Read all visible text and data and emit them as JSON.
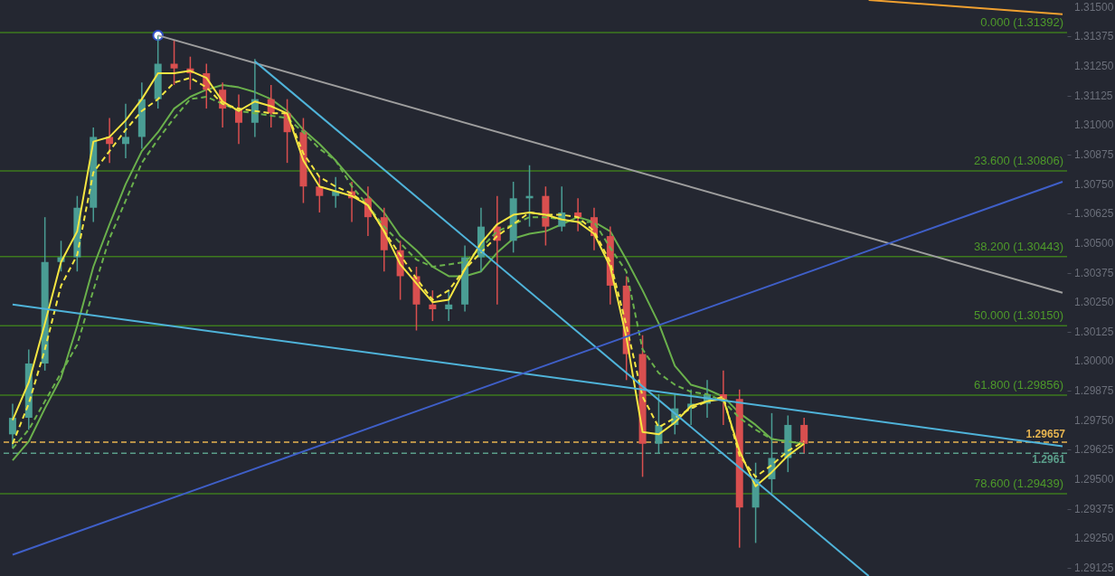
{
  "chart_data": {
    "type": "candlestick",
    "categories": [
      null,
      null,
      null,
      null,
      null,
      null,
      null,
      null,
      null,
      null,
      null,
      null,
      null,
      null,
      null,
      null,
      null,
      null,
      null,
      null,
      null,
      null,
      null,
      null,
      null,
      null,
      null,
      null,
      null,
      null,
      null,
      null,
      null,
      null,
      null,
      null,
      null,
      null,
      null,
      null,
      null,
      null,
      null,
      null,
      null,
      null,
      null,
      null,
      null,
      null,
      null,
      null,
      null,
      null,
      null,
      null,
      null,
      null,
      null,
      null,
      null,
      null,
      null,
      null,
      null,
      null
    ],
    "ohlc": [
      [
        1.2969,
        1.2982,
        1.2963,
        1.2976
      ],
      [
        1.2976,
        1.3005,
        1.2971,
        1.2999
      ],
      [
        1.2999,
        1.3061,
        1.2996,
        1.3042
      ],
      [
        1.3042,
        1.3051,
        1.3038,
        1.3044
      ],
      [
        1.3044,
        1.307,
        1.3038,
        1.3065
      ],
      [
        1.3065,
        1.3099,
        1.3059,
        1.3095
      ],
      [
        1.3095,
        1.3103,
        1.3084,
        1.3092
      ],
      [
        1.3092,
        1.3109,
        1.3086,
        1.3095
      ],
      [
        1.3095,
        1.3118,
        1.309,
        1.3111
      ],
      [
        1.3111,
        1.3138,
        1.3107,
        1.3126
      ],
      [
        1.3126,
        1.3136,
        1.3117,
        1.3124
      ],
      [
        1.3124,
        1.3129,
        1.3115,
        1.3122
      ],
      [
        1.3122,
        1.3126,
        1.3107,
        1.3115
      ],
      [
        1.3115,
        1.3118,
        1.3099,
        1.3107
      ],
      [
        1.3107,
        1.3113,
        1.3092,
        1.3101
      ],
      [
        1.3101,
        1.3128,
        1.3095,
        1.3111
      ],
      [
        1.3111,
        1.3117,
        1.3099,
        1.3105
      ],
      [
        1.3105,
        1.3111,
        1.3084,
        1.3097
      ],
      [
        1.3097,
        1.3103,
        1.3067,
        1.3074
      ],
      [
        1.3074,
        1.3078,
        1.3063,
        1.307
      ],
      [
        1.307,
        1.3078,
        1.3065,
        1.3072
      ],
      [
        1.3072,
        1.3076,
        1.3059,
        1.3069
      ],
      [
        1.3069,
        1.3074,
        1.3053,
        1.3061
      ],
      [
        1.3061,
        1.3065,
        1.3038,
        1.3047
      ],
      [
        1.3047,
        1.3051,
        1.3026,
        1.3036
      ],
      [
        1.3036,
        1.304,
        1.3013,
        1.3024
      ],
      [
        1.3024,
        1.303,
        1.3017,
        1.3022
      ],
      [
        1.3022,
        1.303,
        1.3017,
        1.3024
      ],
      [
        1.3024,
        1.3049,
        1.3021,
        1.3044
      ],
      [
        1.3044,
        1.3065,
        1.3038,
        1.3057
      ],
      [
        1.3057,
        1.307,
        1.3024,
        1.3051
      ],
      [
        1.3051,
        1.3076,
        1.3046,
        1.3069
      ],
      [
        1.3069,
        1.3083,
        1.3057,
        1.307
      ],
      [
        1.307,
        1.3074,
        1.3049,
        1.3057
      ],
      [
        1.3057,
        1.3074,
        1.3055,
        1.3063
      ],
      [
        1.3063,
        1.3069,
        1.3055,
        1.3061
      ],
      [
        1.3061,
        1.3065,
        1.3047,
        1.3053
      ],
      [
        1.3053,
        1.3057,
        1.3024,
        1.3032
      ],
      [
        1.3032,
        1.3036,
        1.2992,
        1.3003
      ],
      [
        1.3003,
        1.3011,
        1.2951,
        1.2965
      ],
      [
        1.2965,
        1.2986,
        1.2961,
        1.2973
      ],
      [
        1.2973,
        1.2986,
        1.2969,
        1.298
      ],
      [
        1.298,
        1.2988,
        1.2973,
        1.2982
      ],
      [
        1.2982,
        1.2992,
        1.2976,
        1.2986
      ],
      [
        1.2986,
        1.2996,
        1.2973,
        1.2984
      ],
      [
        1.2984,
        1.2988,
        1.2921,
        1.2938
      ],
      [
        1.2938,
        1.2957,
        1.2923,
        1.295
      ],
      [
        1.295,
        1.2978,
        1.2944,
        1.2959
      ],
      [
        1.2959,
        1.2977,
        1.2953,
        1.2973
      ],
      [
        1.2973,
        1.2976,
        1.2961,
        1.2965
      ],
      null,
      null,
      null,
      null,
      null,
      null,
      null,
      null,
      null,
      null,
      null,
      null,
      null,
      null,
      null,
      null
    ],
    "colors": [
      "#4a9d94",
      "#4a9d94",
      "#4a9d94",
      "#4a9d94",
      "#4a9d94",
      "#4a9d94",
      "#d94f4f",
      "#4a9d94",
      "#4a9d94",
      "#4a9d94",
      "#d94f4f",
      "#d94f4f",
      "#d94f4f",
      "#d94f4f",
      "#d94f4f",
      "#4a9d94",
      "#d94f4f",
      "#d94f4f",
      "#d94f4f",
      "#d94f4f",
      "#4a9d94",
      "#d94f4f",
      "#d94f4f",
      "#d94f4f",
      "#d94f4f",
      "#d94f4f",
      "#d94f4f",
      "#4a9d94",
      "#4a9d94",
      "#4a9d94",
      "#d94f4f",
      "#4a9d94",
      "#4a9d94",
      "#d94f4f",
      "#4a9d94",
      "#d94f4f",
      "#d94f4f",
      "#d94f4f",
      "#d94f4f",
      "#d94f4f",
      "#4a9d94",
      "#4a9d94",
      "#4a9d94",
      "#4a9d94",
      "#d94f4f",
      "#d94f4f",
      "#4a9d94",
      "#4a9d94",
      "#4a9d94",
      "#d94f4f",
      null,
      null,
      null,
      null,
      null,
      null,
      null,
      null,
      null,
      null,
      null,
      null,
      null,
      null,
      null,
      null
    ],
    "series": [
      {
        "type": "line",
        "color": "#6ab04c",
        "line_style": "solid",
        "values": [
          1.2958,
          1.2966,
          1.298,
          1.2993,
          1.3015,
          1.304,
          1.3058,
          1.3075,
          1.3089,
          1.3097,
          1.3107,
          1.3112,
          1.3115,
          1.3117,
          1.3116,
          1.3114,
          1.3111,
          1.3106,
          1.3098,
          1.3092,
          1.3085,
          1.3077,
          1.307,
          1.3063,
          1.3053,
          1.3047,
          1.304,
          1.3036,
          1.3036,
          1.3038,
          1.3046,
          1.3052,
          1.3054,
          1.3055,
          1.3058,
          1.3061,
          1.3059,
          1.3055,
          1.3043,
          1.303,
          1.3016,
          1.2998,
          1.299,
          1.2988,
          1.2985,
          1.2978,
          1.2973,
          1.2967,
          1.2966,
          1.2965,
          null,
          null,
          null,
          null,
          null,
          null,
          null,
          null,
          null,
          null,
          null,
          null,
          null,
          null,
          null,
          null
        ]
      },
      {
        "type": "line",
        "color": "#6ab04c",
        "line_style": "dashed",
        "values": [
          1.2963,
          1.2971,
          1.2983,
          1.2995,
          1.3007,
          1.303,
          1.3052,
          1.3068,
          1.3084,
          1.3094,
          1.3103,
          1.3111,
          1.3112,
          1.3109,
          1.3106,
          1.3105,
          1.3104,
          1.3103,
          1.3097,
          1.309,
          1.3085,
          1.3074,
          1.3066,
          1.3057,
          1.305,
          1.3043,
          1.304,
          1.3041,
          1.3042,
          1.3048,
          1.3055,
          1.3058,
          1.3061,
          1.3061,
          1.306,
          1.3059,
          1.3059,
          1.3048,
          1.3038,
          1.3005,
          1.2995,
          1.299,
          1.2987,
          1.2986,
          1.2983,
          1.2976,
          1.2971,
          1.2967,
          1.2966,
          1.2965,
          null,
          null,
          null,
          null,
          null,
          null,
          null,
          null,
          null,
          null,
          null,
          null,
          null,
          null,
          null,
          null
        ]
      },
      {
        "type": "line",
        "color": "#f5e642",
        "line_style": "dashed",
        "values": [
          1.2965,
          1.2982,
          1.3005,
          1.3032,
          1.3045,
          1.308,
          1.3089,
          1.3098,
          1.3106,
          1.3111,
          1.3118,
          1.312,
          1.3116,
          1.3109,
          1.3107,
          1.3106,
          1.3105,
          1.3105,
          1.3088,
          1.3078,
          1.3074,
          1.3071,
          1.3066,
          1.3055,
          1.3045,
          1.3035,
          1.3026,
          1.303,
          1.3039,
          1.3046,
          1.3053,
          1.3058,
          1.3063,
          1.3062,
          1.3062,
          1.3061,
          1.3055,
          1.3042,
          1.3015,
          1.2985,
          1.2972,
          1.2976,
          1.298,
          1.2983,
          1.2985,
          1.296,
          1.2951,
          1.2956,
          1.2962,
          1.2966,
          null,
          null,
          null,
          null,
          null,
          null,
          null,
          null,
          null,
          null,
          null,
          null,
          null,
          null,
          null,
          null
        ]
      },
      {
        "type": "line",
        "color": "#f5e642",
        "line_style": "solid",
        "values": [
          1.2975,
          1.2991,
          1.3016,
          1.3042,
          1.3055,
          1.3093,
          1.3095,
          1.3102,
          1.3111,
          1.3122,
          1.3122,
          1.3123,
          1.312,
          1.311,
          1.3106,
          1.311,
          1.3108,
          1.3105,
          1.3085,
          1.3074,
          1.3072,
          1.307,
          1.3066,
          1.3055,
          1.3041,
          1.3033,
          1.3025,
          1.3026,
          1.3039,
          1.305,
          1.3058,
          1.3062,
          1.3063,
          1.3062,
          1.306,
          1.3059,
          1.3054,
          1.304,
          1.301,
          1.297,
          1.2969,
          1.2974,
          1.2981,
          1.2983,
          1.2984,
          1.2962,
          1.2947,
          1.2953,
          1.296,
          1.2965,
          null,
          null,
          null,
          null,
          null,
          null,
          null,
          null,
          null,
          null,
          null,
          null,
          null,
          null,
          null,
          null
        ]
      },
      {
        "type": "line",
        "color": "#9e9e9e",
        "line_style": "solid",
        "marker": "circle",
        "values": [
          null,
          null,
          null,
          null,
          null,
          null,
          null,
          null,
          null,
          1.3138,
          null,
          null,
          null,
          null,
          null,
          null,
          null,
          null,
          null,
          null,
          null,
          null,
          null,
          null,
          null,
          null,
          null,
          null,
          null,
          null,
          null,
          null,
          null,
          null,
          null,
          null,
          null,
          null,
          null,
          null,
          null,
          null,
          null,
          null,
          null,
          null,
          null,
          null,
          null,
          null,
          null,
          null,
          null,
          null,
          null,
          null,
          null,
          null,
          null,
          null,
          null,
          null,
          null,
          null,
          null,
          1.3029
        ]
      },
      {
        "type": "line",
        "color": "#4fb3d9",
        "line_style": "solid",
        "values": [
          null,
          null,
          null,
          null,
          null,
          null,
          null,
          null,
          null,
          null,
          null,
          null,
          null,
          null,
          null,
          1.3127,
          null,
          null,
          null,
          null,
          null,
          null,
          null,
          null,
          null,
          null,
          null,
          null,
          null,
          null,
          null,
          null,
          null,
          null,
          null,
          null,
          null,
          null,
          null,
          null,
          null,
          null,
          null,
          null,
          null,
          null,
          null,
          null,
          null,
          null,
          null,
          null,
          null,
          1.2909,
          null,
          null,
          null,
          null,
          null,
          null,
          null,
          null,
          null,
          null,
          null,
          null
        ]
      },
      {
        "type": "line",
        "color": "#4fb3d9",
        "line_style": "solid",
        "values": [
          1.3024,
          null,
          null,
          null,
          null,
          null,
          null,
          null,
          null,
          null,
          null,
          null,
          null,
          null,
          null,
          null,
          null,
          null,
          null,
          null,
          null,
          null,
          null,
          null,
          null,
          null,
          null,
          null,
          null,
          null,
          null,
          null,
          null,
          null,
          null,
          null,
          null,
          null,
          null,
          null,
          null,
          null,
          null,
          null,
          null,
          null,
          null,
          null,
          null,
          null,
          null,
          null,
          null,
          null,
          null,
          null,
          null,
          null,
          null,
          null,
          null,
          null,
          null,
          null,
          null,
          1.2964
        ]
      },
      {
        "type": "line",
        "color": "#3f5fc8",
        "line_style": "solid",
        "values": [
          1.2918,
          null,
          null,
          null,
          null,
          null,
          null,
          null,
          null,
          null,
          null,
          null,
          null,
          null,
          null,
          null,
          null,
          null,
          null,
          null,
          null,
          null,
          null,
          null,
          null,
          null,
          null,
          null,
          null,
          null,
          null,
          null,
          null,
          null,
          null,
          null,
          null,
          null,
          null,
          null,
          null,
          null,
          null,
          null,
          null,
          null,
          null,
          null,
          null,
          null,
          null,
          null,
          null,
          null,
          null,
          null,
          null,
          null,
          null,
          null,
          null,
          null,
          null,
          null,
          null,
          1.3076
        ]
      },
      {
        "type": "line",
        "color": "#f0a030",
        "line_style": "solid",
        "values": [
          null,
          null,
          null,
          null,
          null,
          null,
          null,
          null,
          null,
          null,
          null,
          null,
          null,
          null,
          null,
          null,
          null,
          null,
          null,
          null,
          null,
          null,
          null,
          null,
          null,
          null,
          null,
          null,
          null,
          null,
          null,
          null,
          null,
          null,
          null,
          null,
          null,
          null,
          null,
          null,
          null,
          null,
          null,
          null,
          null,
          null,
          null,
          null,
          null,
          null,
          null,
          null,
          null,
          1.3153,
          null,
          null,
          null,
          null,
          null,
          null,
          null,
          null,
          null,
          null,
          null,
          1.3147
        ]
      }
    ],
    "ref_lines": [
      {
        "axis": "y",
        "value": 1.31392,
        "label": "0.000 (1.31392)",
        "color": "#3d7a1e"
      },
      {
        "axis": "y",
        "value": 1.30806,
        "label": "23.600 (1.30806)",
        "color": "#3d7a1e"
      },
      {
        "axis": "y",
        "value": 1.30443,
        "label": "38.200 (1.30443)",
        "color": "#3d7a1e"
      },
      {
        "axis": "y",
        "value": 1.3015,
        "label": "50.000 (1.30150)",
        "color": "#3d7a1e"
      },
      {
        "axis": "y",
        "value": 1.29856,
        "label": "61.800 (1.29856)",
        "color": "#3d7a1e"
      },
      {
        "axis": "y",
        "value": 1.29439,
        "label": "78.600 (1.29439)",
        "color": "#3d7a1e"
      },
      {
        "axis": "y",
        "value": 1.29657,
        "label": "1.29657",
        "color": "#e6b450",
        "line_style": "dashed"
      },
      {
        "axis": "y",
        "value": 1.2961,
        "label": "1.2961",
        "color": "#5a9e8a",
        "line_style": "dashed"
      }
    ],
    "ylim": [
      1.2909,
      1.3153
    ],
    "yticks": [
      1.29125,
      {
        "value": 1.2925,
        "label": "1.29250"
      },
      1.29375,
      {
        "value": 1.295,
        "label": "1.29500"
      },
      1.29625,
      {
        "value": 1.2975,
        "label": "1.29750"
      },
      1.29875,
      {
        "value": 1.3,
        "label": "1.30000"
      },
      1.30125,
      {
        "value": 1.3025,
        "label": "1.30250"
      },
      1.30375,
      {
        "value": 1.305,
        "label": "1.30500"
      },
      1.30625,
      {
        "value": 1.3075,
        "label": "1.30750"
      },
      1.30875,
      {
        "value": 1.31,
        "label": "1.31000"
      },
      1.31125,
      {
        "value": 1.3125,
        "label": "1.31250"
      },
      1.31375,
      {
        "value": 1.315,
        "label": "1.31500"
      }
    ],
    "tick_labels": "y",
    "grid": false
  }
}
